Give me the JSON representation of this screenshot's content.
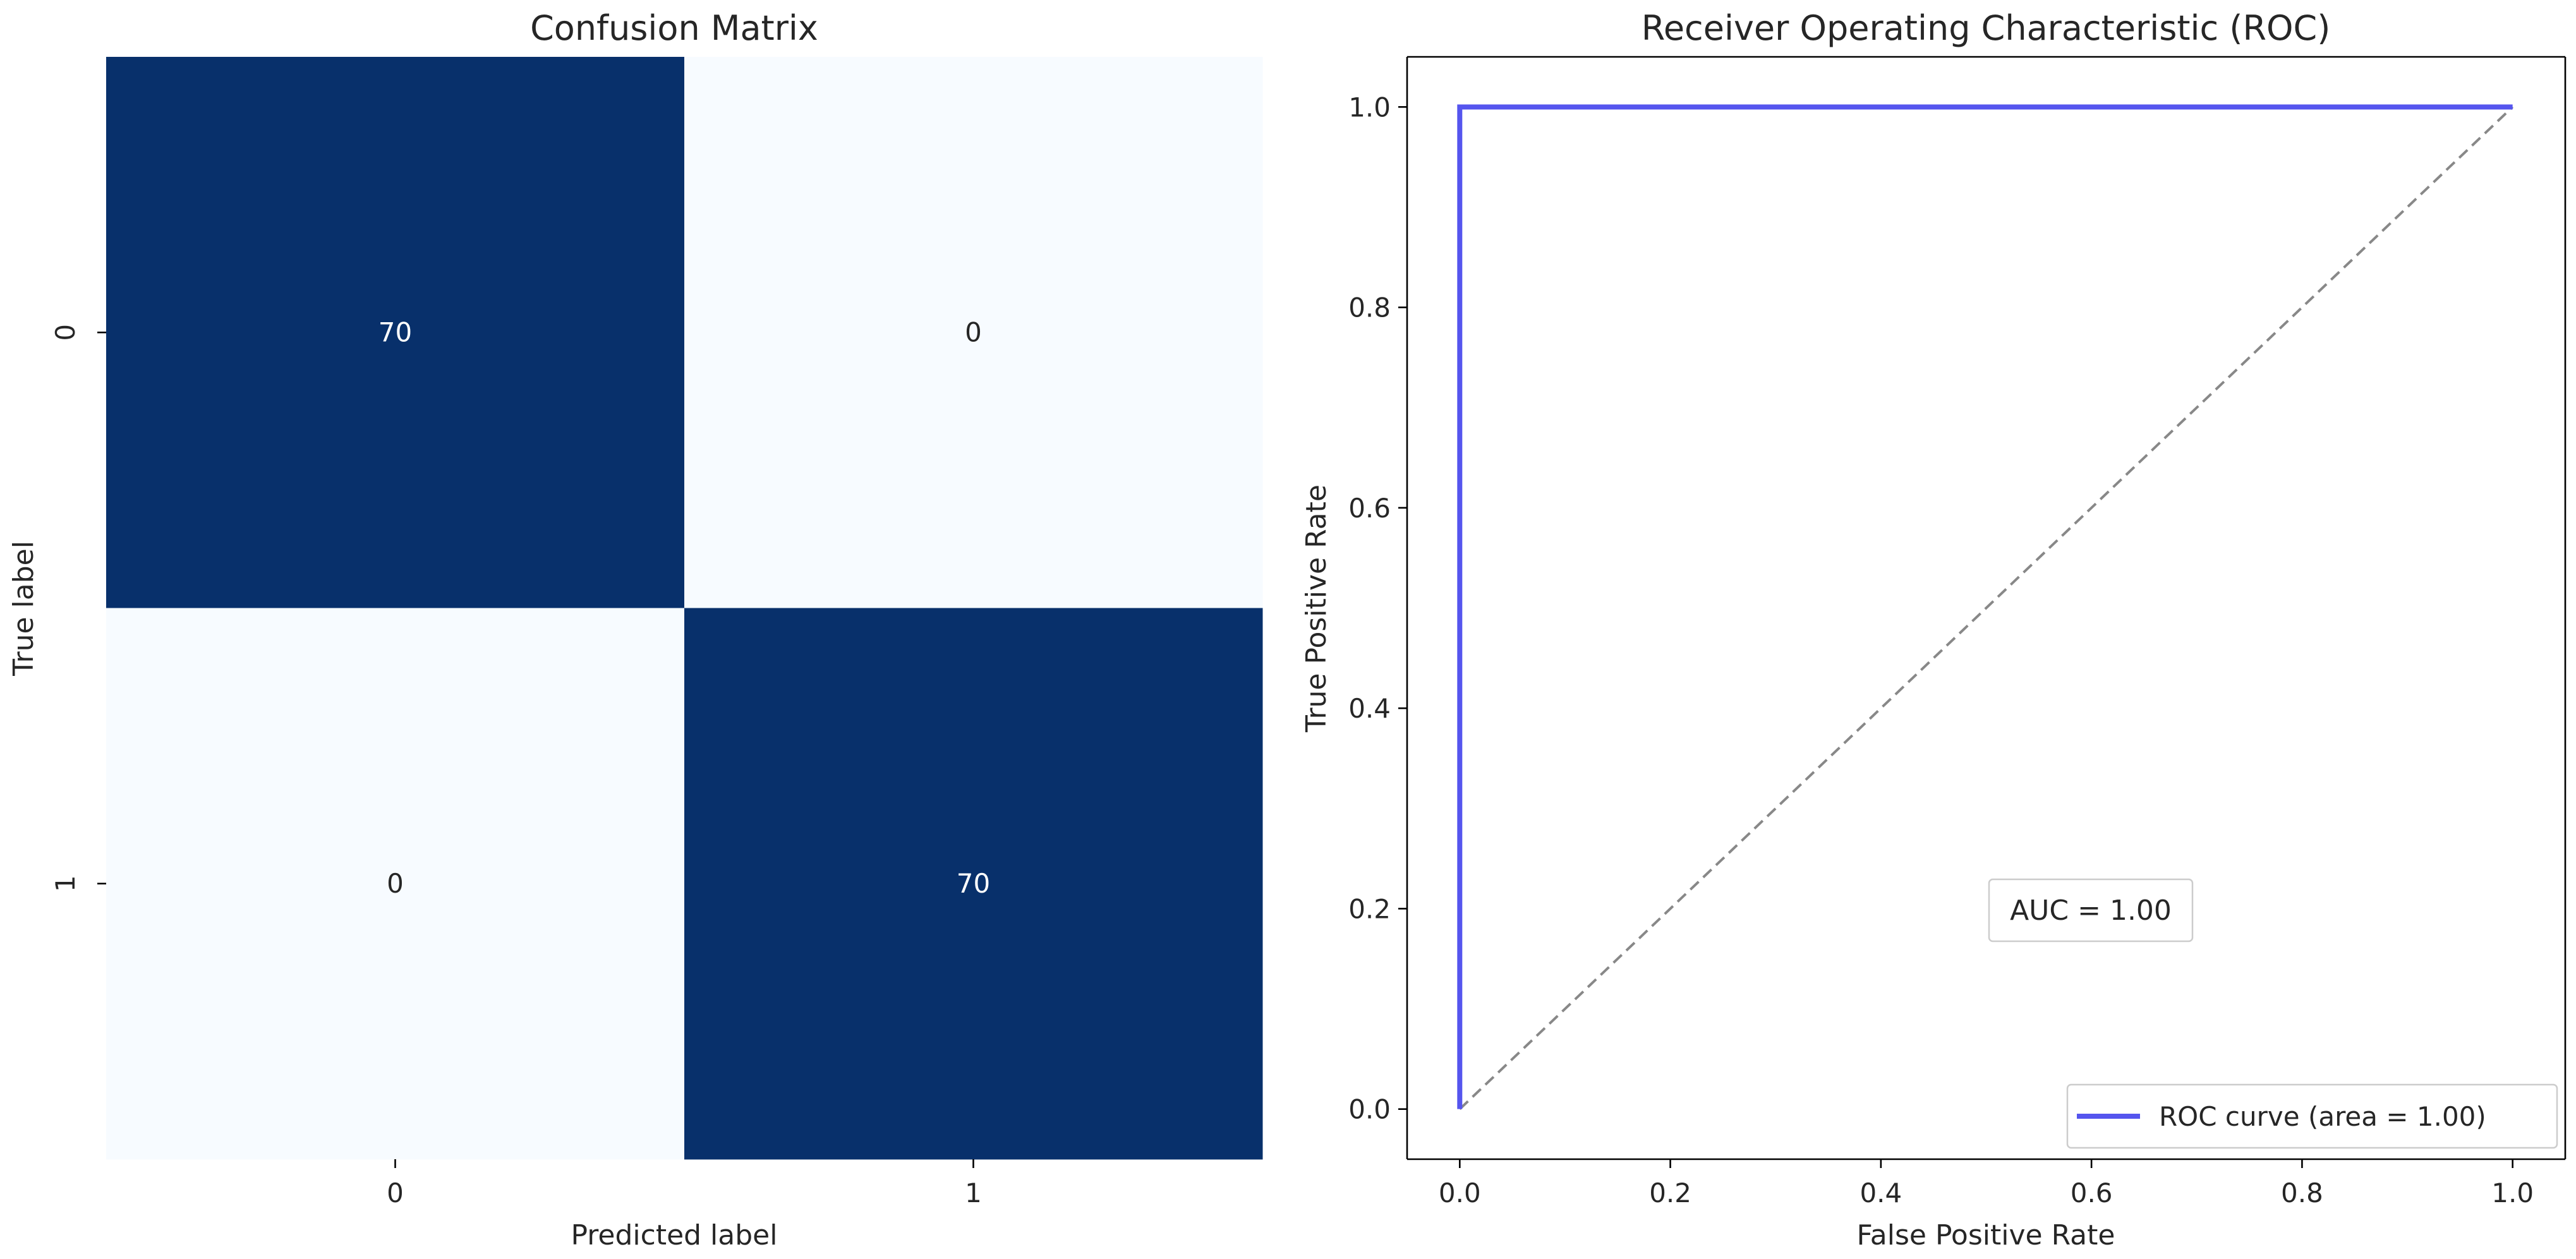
{
  "chart_data": [
    {
      "type": "heatmap",
      "title": "Confusion Matrix",
      "xlabel": "Predicted label",
      "ylabel": "True label",
      "x_categories": [
        "0",
        "1"
      ],
      "y_categories": [
        "0",
        "1"
      ],
      "values": [
        [
          70,
          0
        ],
        [
          0,
          70
        ]
      ],
      "colormap": "Blues",
      "colorbar": false,
      "colors": {
        "high": "#08306b",
        "low": "#f7fbff",
        "text_on_dark": "#ffffff",
        "text_on_light": "#262626"
      }
    },
    {
      "type": "line",
      "title": "Receiver Operating Characteristic (ROC)",
      "xlabel": "False Positive Rate",
      "ylabel": "True Positive Rate",
      "xlim": [
        -0.05,
        1.05
      ],
      "ylim": [
        -0.05,
        1.05
      ],
      "xticks": [
        0.0,
        0.2,
        0.4,
        0.6,
        0.8,
        1.0
      ],
      "yticks": [
        0.0,
        0.2,
        0.4,
        0.6,
        0.8,
        1.0
      ],
      "xtick_labels": [
        "0.0",
        "0.2",
        "0.4",
        "0.6",
        "0.8",
        "1.0"
      ],
      "ytick_labels": [
        "0.0",
        "0.2",
        "0.4",
        "0.6",
        "0.8",
        "1.0"
      ],
      "grid": false,
      "legend_position": "lower-right",
      "series": [
        {
          "name": "ROC curve (area = 1.00)",
          "x": [
            0.0,
            0.0,
            1.0
          ],
          "y": [
            0.0,
            1.0,
            1.0
          ],
          "color": "#5555ee",
          "style": "solid"
        },
        {
          "x": [
            0.0,
            1.0
          ],
          "y": [
            0.0,
            1.0
          ],
          "color": "#888888",
          "style": "dashed"
        }
      ],
      "annotation": {
        "text": "AUC = 1.00",
        "x": 0.6,
        "y": 0.2
      }
    }
  ]
}
